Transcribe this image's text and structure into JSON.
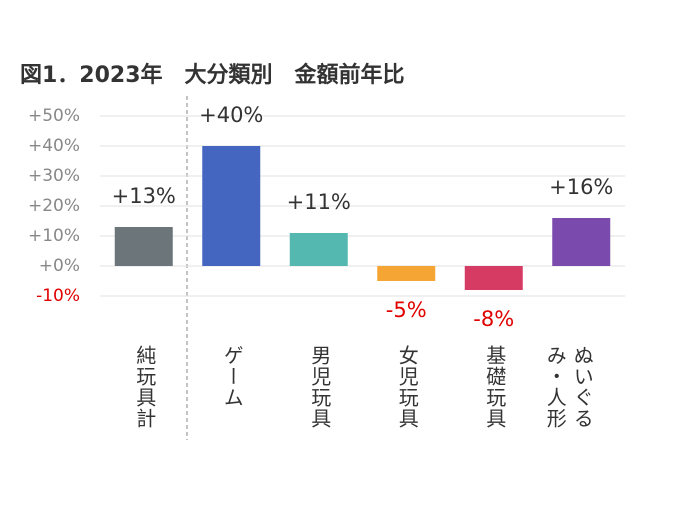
{
  "chart_data": {
    "type": "bar",
    "title": "図1．2023年　大分類別　金額前年比",
    "categories": [
      "純玩具計",
      "ゲーム",
      "男児玩具",
      "女児玩具",
      "基礎玩具",
      "ぬいぐるみ・人形"
    ],
    "values": [
      13,
      40,
      11,
      -5,
      -8,
      16
    ],
    "value_labels": [
      "+13%",
      "+40%",
      "+11%",
      "-5%",
      "-8%",
      "+16%"
    ],
    "colors": [
      "#6c757a",
      "#4466c0",
      "#55b8b0",
      "#f5a533",
      "#d63c63",
      "#7b4aad"
    ],
    "negative_label_color": "#e00000",
    "ylim": [
      -10,
      50
    ],
    "yticks": [
      {
        "value": -10,
        "label": "-10%"
      },
      {
        "value": 0,
        "label": "+0%"
      },
      {
        "value": 10,
        "label": "+10%"
      },
      {
        "value": 20,
        "label": "+20%"
      },
      {
        "value": 30,
        "label": "+30%"
      },
      {
        "value": 40,
        "label": "+40%"
      },
      {
        "value": 50,
        "label": "+50%"
      }
    ],
    "grid": true
  }
}
